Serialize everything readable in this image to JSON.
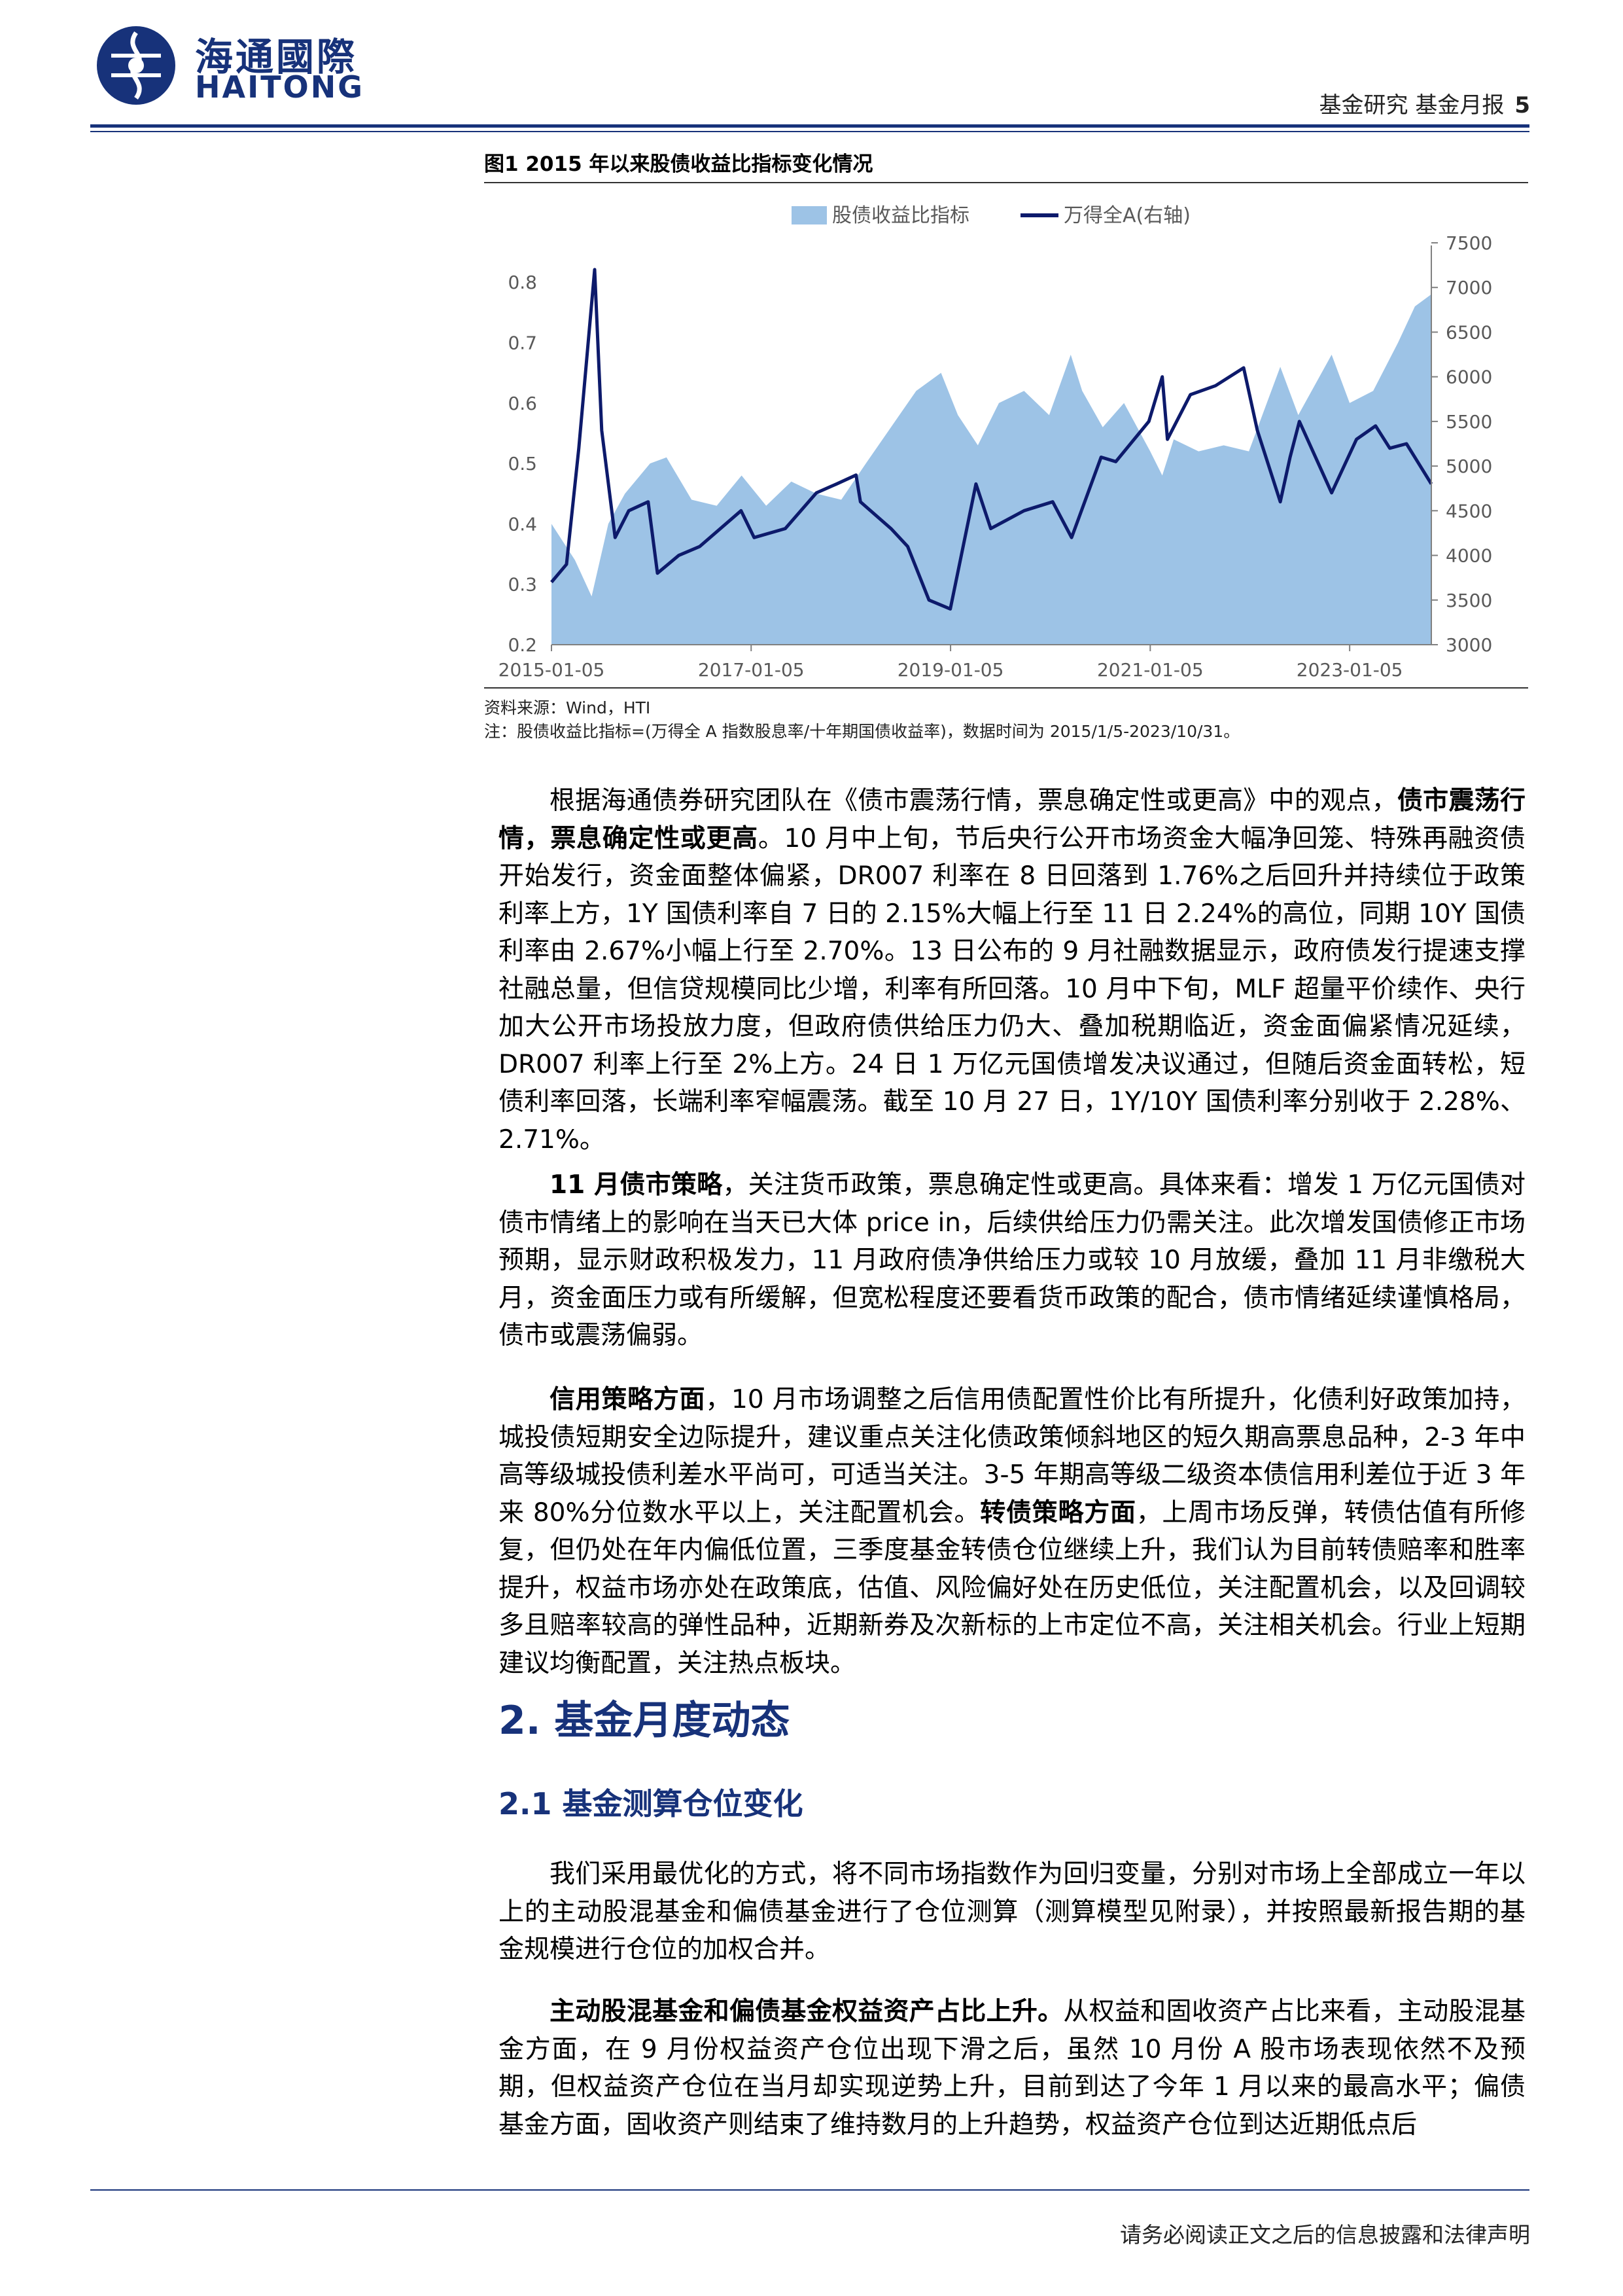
{
  "brand": {
    "name_cn": "海通國際",
    "name_en": "HAITONG",
    "color": "#17327a"
  },
  "header": {
    "section": "基金研究  基金月报",
    "page_number": "5"
  },
  "figure": {
    "title": "图1  2015 年以来股债收益比指标变化情况",
    "source": "资料来源：Wind，HTI",
    "note": "注：股债收益比指标=(万得全 A 指数股息率/十年期国债收益率)，数据时间为 2015/1/5-2023/10/31。"
  },
  "chart_data": {
    "type": "area",
    "series": [
      {
        "name": "股债收益比指标",
        "type": "area",
        "axis": "left",
        "color": "#9dc3e6",
        "x": [
          "2015-01-05",
          "2015-04-01",
          "2015-06-01",
          "2015-08-01",
          "2015-10-01",
          "2016-01-01",
          "2016-03-01",
          "2016-06-01",
          "2016-09-01",
          "2016-12-01",
          "2017-03-01",
          "2017-06-01",
          "2017-09-01",
          "2017-12-01",
          "2018-03-01",
          "2018-06-01",
          "2018-09-01",
          "2018-12-01",
          "2019-02-01",
          "2019-04-15",
          "2019-07-01",
          "2019-10-01",
          "2020-01-01",
          "2020-03-20",
          "2020-05-01",
          "2020-07-15",
          "2020-10-01",
          "2021-01-05",
          "2021-02-18",
          "2021-04-01",
          "2021-07-01",
          "2021-10-01",
          "2022-01-01",
          "2022-04-26",
          "2022-07-01",
          "2022-10-31",
          "2023-01-05",
          "2023-04-01",
          "2023-07-01",
          "2023-09-01",
          "2023-10-31"
        ],
        "values": [
          0.4,
          0.34,
          0.28,
          0.4,
          0.45,
          0.5,
          0.51,
          0.44,
          0.43,
          0.48,
          0.43,
          0.47,
          0.45,
          0.44,
          0.5,
          0.56,
          0.62,
          0.65,
          0.58,
          0.53,
          0.6,
          0.62,
          0.58,
          0.68,
          0.62,
          0.56,
          0.6,
          0.52,
          0.48,
          0.54,
          0.52,
          0.53,
          0.52,
          0.66,
          0.58,
          0.68,
          0.6,
          0.62,
          0.7,
          0.76,
          0.78
        ]
      },
      {
        "name": "万得全A(右轴)",
        "type": "line",
        "axis": "right",
        "color": "#0d1a6b",
        "x": [
          "2015-01-05",
          "2015-03-01",
          "2015-04-15",
          "2015-06-12",
          "2015-07-08",
          "2015-08-26",
          "2015-10-15",
          "2015-12-25",
          "2016-01-28",
          "2016-04-15",
          "2016-07-01",
          "2016-11-29",
          "2017-01-16",
          "2017-05-10",
          "2017-09-01",
          "2017-11-14",
          "2018-01-24",
          "2018-02-09",
          "2018-06-01",
          "2018-08-01",
          "2018-10-18",
          "2019-01-04",
          "2019-04-08",
          "2019-06-01",
          "2019-08-01",
          "2019-10-01",
          "2020-01-14",
          "2020-03-23",
          "2020-07-09",
          "2020-09-01",
          "2020-12-31",
          "2021-02-18",
          "2021-03-09",
          "2021-06-01",
          "2021-09-01",
          "2021-12-13",
          "2022-02-01",
          "2022-04-26",
          "2022-06-01",
          "2022-07-05",
          "2022-10-31",
          "2023-01-30",
          "2023-04-10",
          "2023-06-01",
          "2023-08-01",
          "2023-10-31"
        ],
        "values": [
          3700,
          3900,
          5200,
          7200,
          5400,
          4200,
          4500,
          4600,
          3800,
          4000,
          4100,
          4500,
          4200,
          4300,
          4700,
          4800,
          4900,
          4600,
          4300,
          4100,
          3500,
          3400,
          4800,
          4300,
          4400,
          4500,
          4600,
          4200,
          5100,
          5050,
          5500,
          6000,
          5300,
          5800,
          5900,
          6100,
          5400,
          4600,
          5100,
          5500,
          4700,
          5300,
          5450,
          5200,
          5250,
          4800
        ]
      }
    ],
    "x_ticks": [
      "2015-01-05",
      "2017-01-05",
      "2019-01-05",
      "2021-01-05",
      "2023-01-05"
    ],
    "y_left": {
      "ticks": [
        "0.2",
        "0.3",
        "0.4",
        "0.5",
        "0.6",
        "0.7",
        "0.8"
      ],
      "range": [
        0.2,
        0.85
      ]
    },
    "y_right": {
      "ticks": [
        "3000",
        "3500",
        "4000",
        "4500",
        "5000",
        "5500",
        "6000",
        "6500",
        "7000",
        "7500"
      ],
      "range": [
        3000,
        7500
      ]
    },
    "x_range": [
      "2015-01-05",
      "2023-10-31"
    ],
    "legend_position": "top-center",
    "grid": false
  },
  "paragraphs": {
    "p1": {
      "a": "根据海通债券研究团队在《债市震荡行情，票息确定性或更高》中的观点，",
      "b": "债市震荡行情，票息确定性或更高",
      "c": "。10 月中上旬，节后央行公开市场资金大幅净回笼、特殊再融资债开始发行，资金面整体偏紧，DR007 利率在 8 日回落到 1.76%之后回升并持续位于政策利率上方，1Y 国债利率自 7 日的 2.15%大幅上行至 11 日 2.24%的高位，同期 10Y 国债利率由 2.67%小幅上行至 2.70%。13 日公布的 9 月社融数据显示，政府债发行提速支撑社融总量，但信贷规模同比少增，利率有所回落。10 月中下旬，MLF 超量平价续作、央行加大公开市场投放力度，但政府债供给压力仍大、叠加税期临近，资金面偏紧情况延续，DR007 利率上行至 2%上方。24 日 1 万亿元国债增发决议通过，但随后资金面转松，短债利率回落，长端利率窄幅震荡。截至 10 月 27 日，1Y/10Y 国债利率分别收于 2.28%、2.71%。"
    },
    "p2": {
      "a": "11 月债市策略",
      "b": "，关注货币政策，票息确定性或更高。具体来看：增发 1 万亿元国债对债市情绪上的影响在当天已大体 price in，后续供给压力仍需关注。此次增发国债修正市场预期，显示财政积极发力，11 月政府债净供给压力或较 10 月放缓，叠加 11 月非缴税大月，资金面压力或有所缓解，但宽松程度还要看货币政策的配合，债市情绪延续谨慎格局，债市或震荡偏弱。"
    },
    "p3": {
      "a": "信用策略方面",
      "b": "，10 月市场调整之后信用债配置性价比有所提升，化债利好政策加持，城投债短期安全边际提升，建议重点关注化债政策倾斜地区的短久期高票息品种，2-3 年中高等级城投债利差水平尚可，可适当关注。3-5 年期高等级二级资本债信用利差位于近 3 年来 80%分位数水平以上，关注配置机会。",
      "c": "转债策略方面",
      "d": "，上周市场反弹，转债估值有所修复，但仍处在年内偏低位置，三季度基金转债仓位继续上升，我们认为目前转债赔率和胜率提升，权益市场亦处在政策底，估值、风险偏好处在历史低位，关注配置机会，以及回调较多且赔率较高的弹性品种，近期新券及次新标的上市定位不高，关注相关机会。行业上短期建议均衡配置，关注热点板块。"
    },
    "h2": "2.  基金月度动态",
    "h3": "2.1 基金测算仓位变化",
    "p4": "我们采用最优化的方式，将不同市场指数作为回归变量，分别对市场上全部成立一年以上的主动股混基金和偏债基金进行了仓位测算（测算模型见附录），并按照最新报告期的基金规模进行仓位的加权合并。",
    "p5": {
      "a": "主动股混基金和偏债基金权益资产占比上升。",
      "b": "从权益和固收资产占比来看，主动股混基金方面，在 9 月份权益资产仓位出现下滑之后，虽然 10 月份 A 股市场表现依然不及预期，但权益资产仓位在当月却实现逆势上升，目前到达了今年 1 月以来的最高水平；偏债基金方面，固收资产则结束了维持数月的上升趋势，权益资产仓位到达近期低点后"
    }
  },
  "footer": {
    "disclaimer": "请务必阅读正文之后的信息披露和法律声明"
  }
}
